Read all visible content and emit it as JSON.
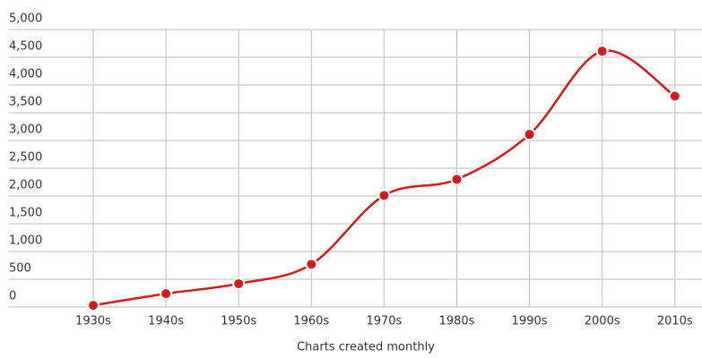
{
  "chart_data": {
    "type": "line",
    "x_label": "Charts created monthly",
    "categories": [
      "1930s",
      "1940s",
      "1950s",
      "1960s",
      "1970s",
      "1980s",
      "1990s",
      "2000s",
      "2010s"
    ],
    "series": [
      {
        "color": "#d7191c",
        "values": [
          30,
          240,
          420,
          770,
          2010,
          2300,
          3110,
          4610,
          3800
        ]
      }
    ],
    "ylim": [
      0,
      5000
    ],
    "yticks": [
      0,
      {
        "value": 500,
        "label": "500"
      },
      {
        "value": 1000,
        "label": "1,000"
      },
      {
        "value": 1500,
        "label": "1,500"
      },
      {
        "value": 2000,
        "label": "2,000"
      },
      {
        "value": 2500,
        "label": "2,500"
      },
      {
        "value": 3000,
        "label": "3,000"
      },
      {
        "value": 3500,
        "label": "3,500"
      },
      {
        "value": 4000,
        "label": "4,000"
      },
      {
        "value": 4500,
        "label": "4,500"
      },
      {
        "value": 5000,
        "label": "5,000"
      }
    ],
    "grid": true
  }
}
